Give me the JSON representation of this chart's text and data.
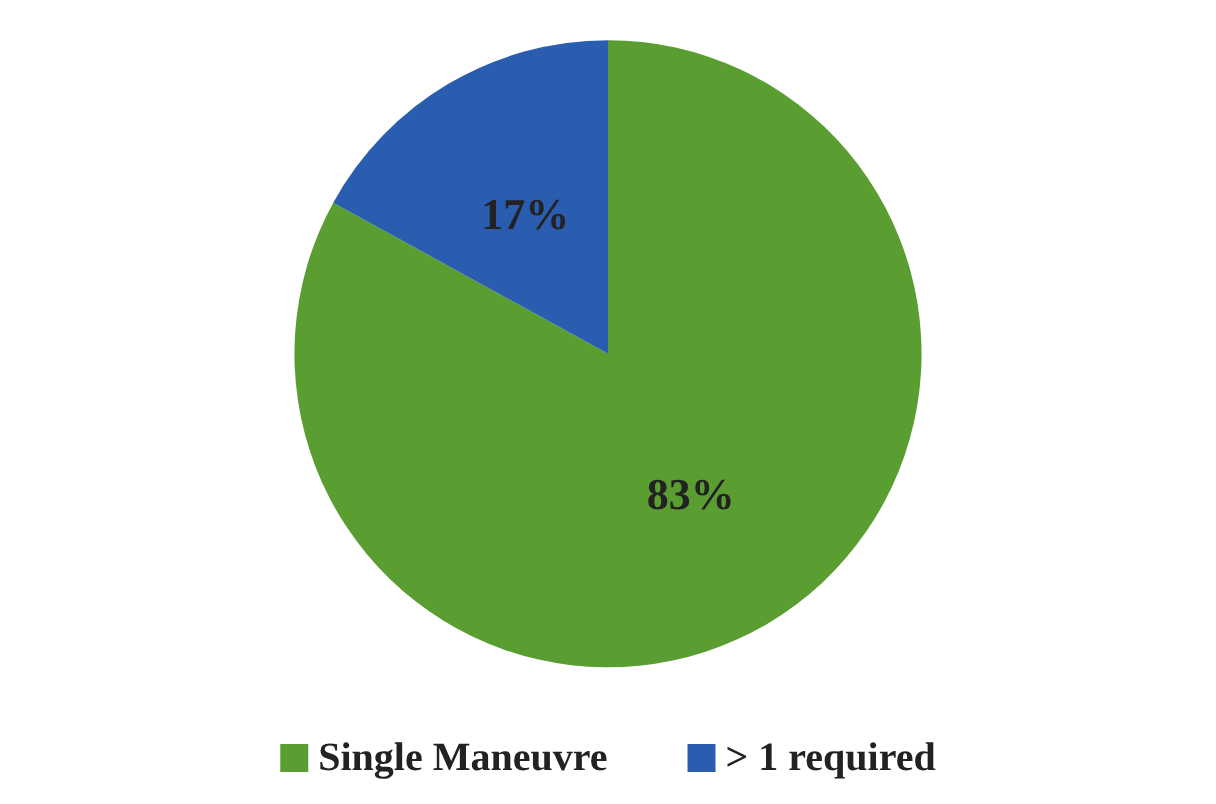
{
  "chart_data": {
    "type": "pie",
    "categories": [
      "Single Maneuvre",
      "> 1 required"
    ],
    "values": [
      83,
      17
    ],
    "colors": [
      "#5a9e32",
      "#2a5db0"
    ],
    "value_labels": [
      "83%",
      "17%"
    ],
    "legend": "bottom"
  }
}
